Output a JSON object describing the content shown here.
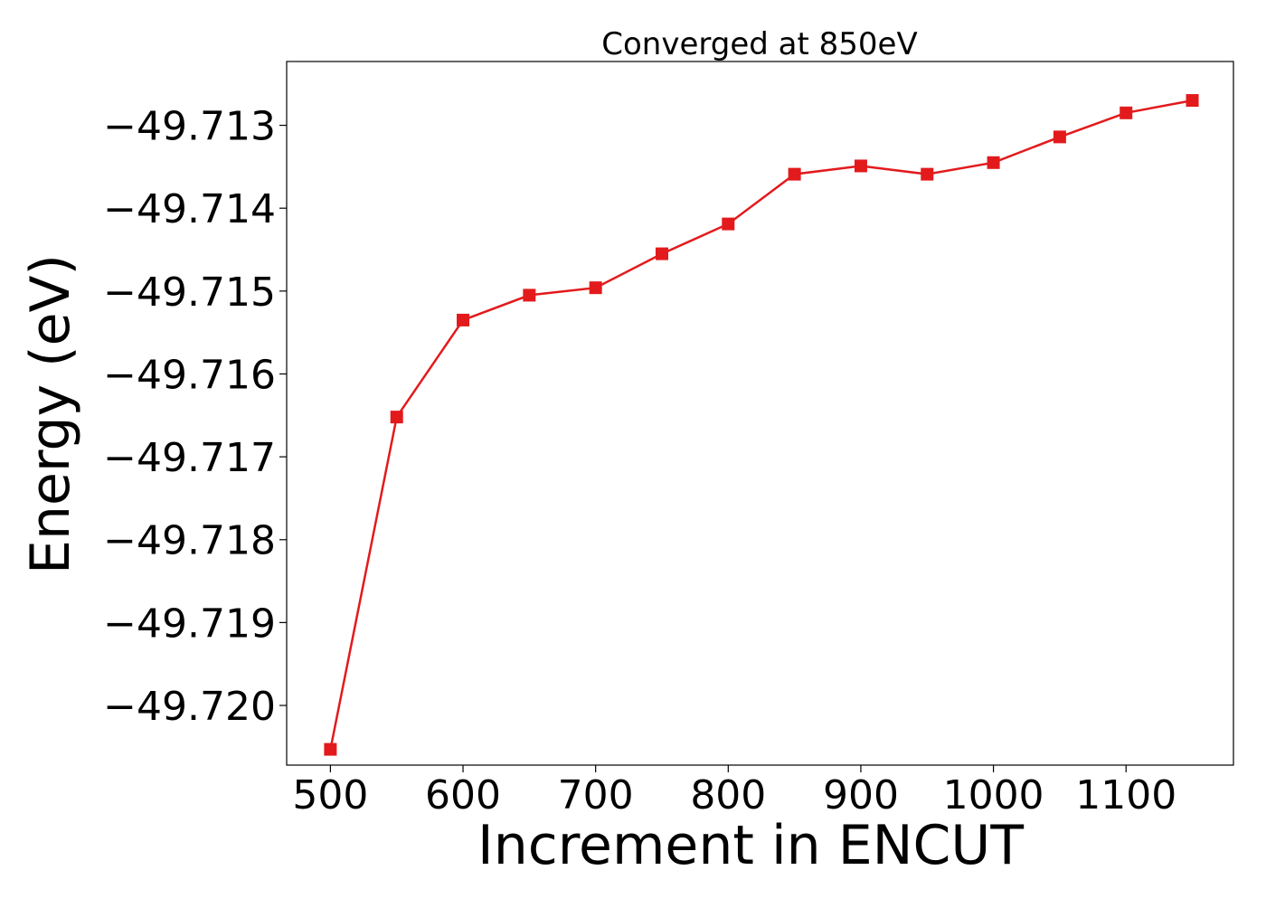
{
  "chart_data": {
    "type": "line",
    "title": "Converged at 850eV",
    "xlabel": "Increment in ENCUT",
    "ylabel": "Energy (eV)",
    "xlim": [
      467,
      1181
    ],
    "ylim": [
      -49.72072,
      -49.71223
    ],
    "grid": false,
    "x_ticks": [
      500,
      600,
      700,
      800,
      900,
      1000,
      1100
    ],
    "x_tick_labels": [
      "500",
      "600",
      "700",
      "800",
      "900",
      "1000",
      "1100"
    ],
    "y_ticks": [
      -49.713,
      -49.714,
      -49.715,
      -49.716,
      -49.717,
      -49.718,
      -49.719,
      -49.72
    ],
    "y_tick_labels": [
      "−49.713",
      "−49.714",
      "−49.715",
      "−49.716",
      "−49.717",
      "−49.718",
      "−49.719",
      "−49.720"
    ],
    "series": [
      {
        "color": "#e31a1c",
        "marker": "square",
        "x": [
          500,
          550,
          600,
          650,
          700,
          750,
          800,
          850,
          900,
          950,
          1000,
          1050,
          1100,
          1150
        ],
        "values": [
          -49.72053,
          -49.71652,
          -49.71535,
          -49.71505,
          -49.71496,
          -49.71455,
          -49.71419,
          -49.71359,
          -49.71349,
          -49.71359,
          -49.71345,
          -49.71314,
          -49.71285,
          -49.7127
        ]
      }
    ]
  }
}
